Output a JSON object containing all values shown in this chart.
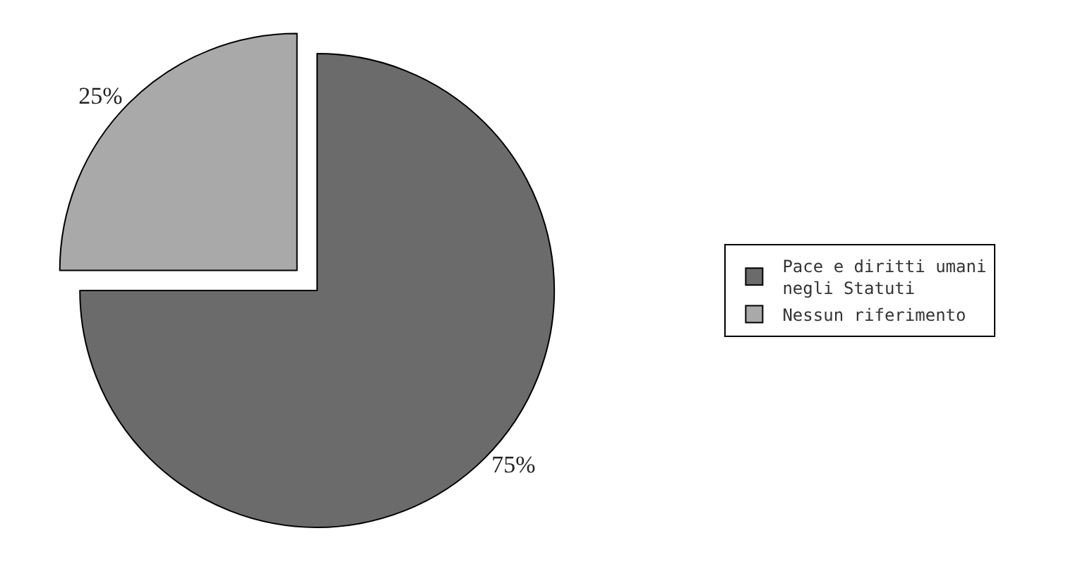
{
  "chart_data": {
    "type": "pie",
    "categories": [
      "Pace e diritti umani negli Statuti",
      "Nessun riferimento"
    ],
    "values": [
      75,
      25
    ],
    "colors": [
      "#6b6b6b",
      "#a9a9a9"
    ],
    "value_labels": [
      "75%",
      "25%"
    ],
    "legend": "right"
  }
}
